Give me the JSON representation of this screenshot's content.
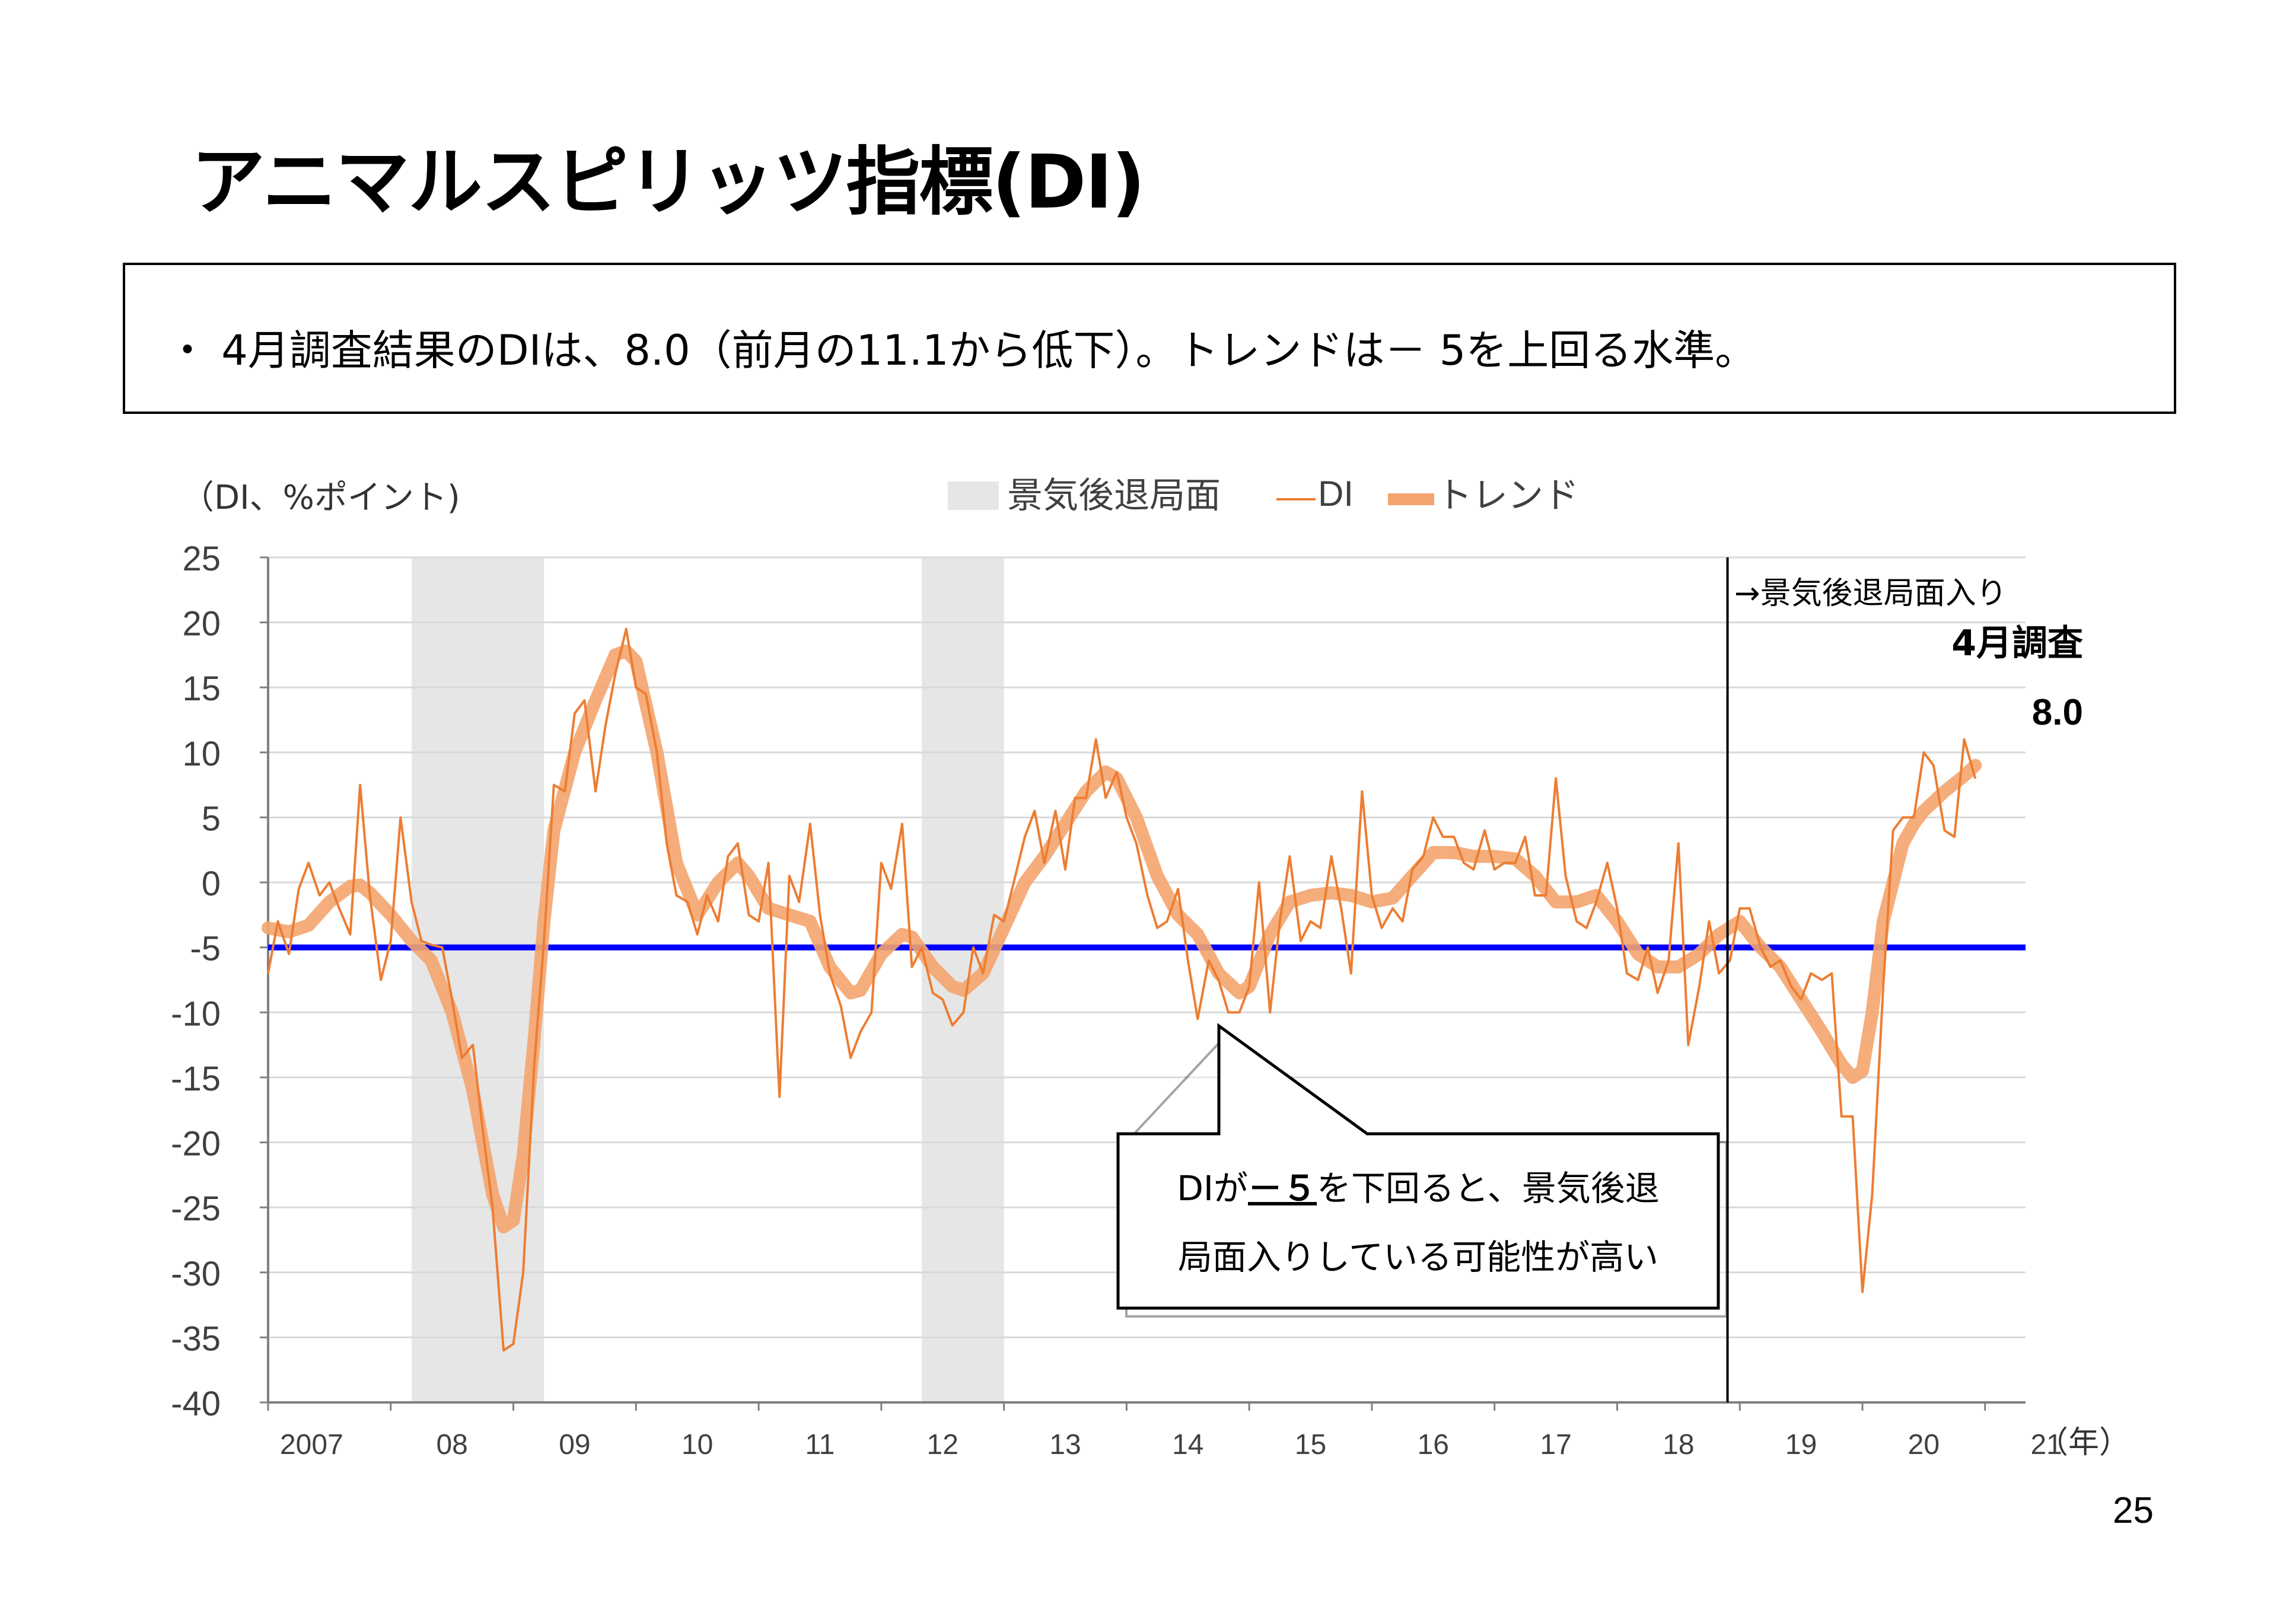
{
  "title": "アニマルスピリッツ指標(DI)",
  "summary": "・ 4月調査結果のDIは、8.0（前月の11.1から低下）。トレンドは－ 5を上回る水準。",
  "page_number": "25",
  "callout": {
    "line1_prefix": "DIが",
    "line1_emph": "－５",
    "line1_suffix": "を下回ると、景気後退",
    "line2": "局面入りしている可能性が高い"
  },
  "annotations": {
    "recession_entry": "→景気後退局面入り",
    "latest_label": "4月調査",
    "latest_value": "8.0"
  },
  "colors": {
    "di": "#ED7D31",
    "trend": "#F4A46E",
    "threshold": "#0000FF",
    "recession": "#E6E6E6"
  },
  "chart_data": {
    "type": "line",
    "ylabel": "（DI、%ポイント)",
    "xlabel": "（年）",
    "ylim": [
      -40,
      25
    ],
    "yticks": [
      "25",
      "20",
      "15",
      "10",
      "5",
      "0",
      "-5",
      "-10",
      "-15",
      "-20",
      "-25",
      "-30",
      "-35",
      "-40"
    ],
    "year_labels": [
      "2007",
      "08",
      "09",
      "10",
      "11",
      "12",
      "13",
      "14",
      "15",
      "16",
      "17",
      "18",
      "19",
      "20",
      "21"
    ],
    "x_start": 2007.0,
    "x_end": 2021.33,
    "legend": [
      "景気後退局面",
      "DI",
      "トレンド"
    ],
    "legend_position": "top-center",
    "grid": true,
    "threshold": -5,
    "recession_entry_marker": 2018.9,
    "recession_periods": [
      [
        2008.17,
        2009.25
      ],
      [
        2012.33,
        2013.0
      ]
    ],
    "series": [
      {
        "name": "DI",
        "points": [
          [
            2007.0,
            -7
          ],
          [
            2007.08,
            -3
          ],
          [
            2007.17,
            -5.5
          ],
          [
            2007.25,
            -0.5
          ],
          [
            2007.33,
            1.5
          ],
          [
            2007.42,
            -1
          ],
          [
            2007.5,
            0
          ],
          [
            2007.58,
            -2
          ],
          [
            2007.67,
            -4
          ],
          [
            2007.75,
            7.5
          ],
          [
            2007.83,
            -1
          ],
          [
            2007.92,
            -7.5
          ],
          [
            2008.0,
            -4.5
          ],
          [
            2008.08,
            5
          ],
          [
            2008.17,
            -1.5
          ],
          [
            2008.25,
            -4.5
          ],
          [
            2008.33,
            -4.8
          ],
          [
            2008.42,
            -5
          ],
          [
            2008.5,
            -9
          ],
          [
            2008.58,
            -13.5
          ],
          [
            2008.67,
            -12.5
          ],
          [
            2008.75,
            -19
          ],
          [
            2008.83,
            -25
          ],
          [
            2008.92,
            -36
          ],
          [
            2009.0,
            -35.5
          ],
          [
            2009.08,
            -30
          ],
          [
            2009.17,
            -14
          ],
          [
            2009.25,
            -4.5
          ],
          [
            2009.33,
            7.5
          ],
          [
            2009.42,
            7
          ],
          [
            2009.5,
            13
          ],
          [
            2009.58,
            14
          ],
          [
            2009.67,
            7
          ],
          [
            2009.75,
            12
          ],
          [
            2009.83,
            16
          ],
          [
            2009.92,
            19.5
          ],
          [
            2010.0,
            15
          ],
          [
            2010.08,
            14.5
          ],
          [
            2010.17,
            10
          ],
          [
            2010.25,
            3
          ],
          [
            2010.33,
            -1
          ],
          [
            2010.42,
            -1.5
          ],
          [
            2010.5,
            -4
          ],
          [
            2010.58,
            -1
          ],
          [
            2010.67,
            -3
          ],
          [
            2010.75,
            2
          ],
          [
            2010.83,
            3
          ],
          [
            2010.92,
            -2.5
          ],
          [
            2011.0,
            -3
          ],
          [
            2011.08,
            1.5
          ],
          [
            2011.17,
            -16.5
          ],
          [
            2011.25,
            0.5
          ],
          [
            2011.33,
            -1.5
          ],
          [
            2011.42,
            4.5
          ],
          [
            2011.5,
            -2.5
          ],
          [
            2011.58,
            -7
          ],
          [
            2011.67,
            -9.5
          ],
          [
            2011.75,
            -13.5
          ],
          [
            2011.83,
            -11.5
          ],
          [
            2011.92,
            -10
          ],
          [
            2012.0,
            1.5
          ],
          [
            2012.08,
            -0.5
          ],
          [
            2012.17,
            4.5
          ],
          [
            2012.25,
            -6.5
          ],
          [
            2012.33,
            -5
          ],
          [
            2012.42,
            -8.5
          ],
          [
            2012.5,
            -9
          ],
          [
            2012.58,
            -11
          ],
          [
            2012.67,
            -10
          ],
          [
            2012.75,
            -5
          ],
          [
            2012.83,
            -7
          ],
          [
            2012.92,
            -2.5
          ],
          [
            2013.0,
            -3
          ],
          [
            2013.08,
            0
          ],
          [
            2013.17,
            3.5
          ],
          [
            2013.25,
            5.5
          ],
          [
            2013.33,
            1.5
          ],
          [
            2013.42,
            5.5
          ],
          [
            2013.5,
            1
          ],
          [
            2013.58,
            6.5
          ],
          [
            2013.67,
            6.5
          ],
          [
            2013.75,
            11
          ],
          [
            2013.83,
            6.5
          ],
          [
            2013.92,
            8.5
          ],
          [
            2014.0,
            5
          ],
          [
            2014.08,
            3
          ],
          [
            2014.17,
            -1
          ],
          [
            2014.25,
            -3.5
          ],
          [
            2014.33,
            -3
          ],
          [
            2014.42,
            -0.5
          ],
          [
            2014.5,
            -6
          ],
          [
            2014.58,
            -10.5
          ],
          [
            2014.67,
            -6
          ],
          [
            2014.75,
            -7.5
          ],
          [
            2014.83,
            -10
          ],
          [
            2014.92,
            -10
          ],
          [
            2015.0,
            -8
          ],
          [
            2015.08,
            0
          ],
          [
            2015.17,
            -10
          ],
          [
            2015.25,
            -3
          ],
          [
            2015.33,
            2
          ],
          [
            2015.42,
            -4.5
          ],
          [
            2015.5,
            -3
          ],
          [
            2015.58,
            -3.5
          ],
          [
            2015.67,
            2
          ],
          [
            2015.75,
            -2
          ],
          [
            2015.83,
            -7
          ],
          [
            2015.92,
            7
          ],
          [
            2016.0,
            -1
          ],
          [
            2016.08,
            -3.5
          ],
          [
            2016.17,
            -2
          ],
          [
            2016.25,
            -3
          ],
          [
            2016.33,
            1
          ],
          [
            2016.42,
            2
          ],
          [
            2016.5,
            5
          ],
          [
            2016.58,
            3.5
          ],
          [
            2016.67,
            3.5
          ],
          [
            2016.75,
            1.5
          ],
          [
            2016.83,
            1
          ],
          [
            2016.92,
            4
          ],
          [
            2017.0,
            1
          ],
          [
            2017.08,
            1.5
          ],
          [
            2017.17,
            1.5
          ],
          [
            2017.25,
            3.5
          ],
          [
            2017.33,
            -1
          ],
          [
            2017.42,
            -1
          ],
          [
            2017.5,
            8
          ],
          [
            2017.58,
            0.5
          ],
          [
            2017.67,
            -3
          ],
          [
            2017.75,
            -3.5
          ],
          [
            2017.83,
            -1.5
          ],
          [
            2017.92,
            1.5
          ],
          [
            2018.0,
            -2
          ],
          [
            2018.08,
            -7
          ],
          [
            2018.17,
            -7.5
          ],
          [
            2018.25,
            -5
          ],
          [
            2018.33,
            -8.5
          ],
          [
            2018.42,
            -6
          ],
          [
            2018.5,
            3
          ],
          [
            2018.58,
            -12.5
          ],
          [
            2018.67,
            -8
          ],
          [
            2018.75,
            -3
          ],
          [
            2018.83,
            -7
          ],
          [
            2018.92,
            -6
          ],
          [
            2019.0,
            -2
          ],
          [
            2019.08,
            -2
          ],
          [
            2019.17,
            -5
          ],
          [
            2019.25,
            -6.5
          ],
          [
            2019.33,
            -6
          ],
          [
            2019.42,
            -8
          ],
          [
            2019.5,
            -9
          ],
          [
            2019.58,
            -7
          ],
          [
            2019.67,
            -7.5
          ],
          [
            2019.75,
            -7
          ],
          [
            2019.83,
            -18
          ],
          [
            2019.92,
            -18
          ],
          [
            2020.0,
            -31.5
          ],
          [
            2020.08,
            -24
          ],
          [
            2020.17,
            -8
          ],
          [
            2020.25,
            4
          ],
          [
            2020.33,
            5
          ],
          [
            2020.42,
            5
          ],
          [
            2020.5,
            10
          ],
          [
            2020.58,
            9
          ],
          [
            2020.67,
            4
          ],
          [
            2020.75,
            3.5
          ],
          [
            2020.83,
            11
          ],
          [
            2020.92,
            8
          ]
        ]
      },
      {
        "name": "トレンド",
        "points": [
          [
            2007.0,
            -3.5
          ],
          [
            2007.17,
            -3.8
          ],
          [
            2007.33,
            -3.3
          ],
          [
            2007.5,
            -1.5
          ],
          [
            2007.67,
            -0.3
          ],
          [
            2007.75,
            -0.2
          ],
          [
            2007.83,
            -0.8
          ],
          [
            2008.0,
            -2.5
          ],
          [
            2008.17,
            -4.5
          ],
          [
            2008.33,
            -6
          ],
          [
            2008.5,
            -10
          ],
          [
            2008.67,
            -16
          ],
          [
            2008.83,
            -24
          ],
          [
            2008.92,
            -26.5
          ],
          [
            2009.0,
            -26
          ],
          [
            2009.08,
            -21
          ],
          [
            2009.17,
            -12
          ],
          [
            2009.25,
            -3
          ],
          [
            2009.33,
            4
          ],
          [
            2009.5,
            10
          ],
          [
            2009.67,
            14
          ],
          [
            2009.83,
            17.5
          ],
          [
            2009.92,
            17.8
          ],
          [
            2010.0,
            17
          ],
          [
            2010.17,
            10
          ],
          [
            2010.33,
            1.5
          ],
          [
            2010.5,
            -2.5
          ],
          [
            2010.67,
            0
          ],
          [
            2010.83,
            1.5
          ],
          [
            2010.92,
            0.5
          ],
          [
            2011.08,
            -2
          ],
          [
            2011.25,
            -2.5
          ],
          [
            2011.42,
            -3
          ],
          [
            2011.58,
            -6.5
          ],
          [
            2011.75,
            -8.5
          ],
          [
            2011.83,
            -8.3
          ],
          [
            2012.0,
            -5.5
          ],
          [
            2012.17,
            -4
          ],
          [
            2012.25,
            -4.2
          ],
          [
            2012.42,
            -6.5
          ],
          [
            2012.58,
            -8
          ],
          [
            2012.67,
            -8.3
          ],
          [
            2012.83,
            -7
          ],
          [
            2013.0,
            -3.5
          ],
          [
            2013.17,
            0
          ],
          [
            2013.33,
            2
          ],
          [
            2013.5,
            4.5
          ],
          [
            2013.67,
            7
          ],
          [
            2013.83,
            8.5
          ],
          [
            2013.92,
            8
          ],
          [
            2014.08,
            5
          ],
          [
            2014.25,
            0.5
          ],
          [
            2014.42,
            -2.5
          ],
          [
            2014.58,
            -4
          ],
          [
            2014.75,
            -7
          ],
          [
            2014.92,
            -8.5
          ],
          [
            2015.0,
            -8
          ],
          [
            2015.17,
            -4
          ],
          [
            2015.33,
            -1.5
          ],
          [
            2015.5,
            -1
          ],
          [
            2015.67,
            -0.8
          ],
          [
            2015.83,
            -1
          ],
          [
            2016.0,
            -1.5
          ],
          [
            2016.17,
            -1.2
          ],
          [
            2016.33,
            0.5
          ],
          [
            2016.5,
            2.3
          ],
          [
            2016.67,
            2.3
          ],
          [
            2016.83,
            2
          ],
          [
            2017.0,
            2
          ],
          [
            2017.17,
            1.8
          ],
          [
            2017.33,
            0.5
          ],
          [
            2017.5,
            -1.5
          ],
          [
            2017.67,
            -1.5
          ],
          [
            2017.83,
            -1
          ],
          [
            2018.0,
            -3
          ],
          [
            2018.17,
            -5.5
          ],
          [
            2018.33,
            -6.5
          ],
          [
            2018.5,
            -6.5
          ],
          [
            2018.67,
            -5.5
          ],
          [
            2018.83,
            -4
          ],
          [
            2019.0,
            -3
          ],
          [
            2019.17,
            -5
          ],
          [
            2019.33,
            -6.5
          ],
          [
            2019.5,
            -9
          ],
          [
            2019.67,
            -11.5
          ],
          [
            2019.83,
            -14
          ],
          [
            2019.92,
            -15
          ],
          [
            2020.0,
            -14.5
          ],
          [
            2020.08,
            -10
          ],
          [
            2020.17,
            -3
          ],
          [
            2020.25,
            0
          ],
          [
            2020.33,
            3
          ],
          [
            2020.42,
            4.5
          ],
          [
            2020.5,
            5.5
          ],
          [
            2020.67,
            7
          ],
          [
            2020.83,
            8.2
          ],
          [
            2020.92,
            9
          ]
        ]
      }
    ]
  }
}
